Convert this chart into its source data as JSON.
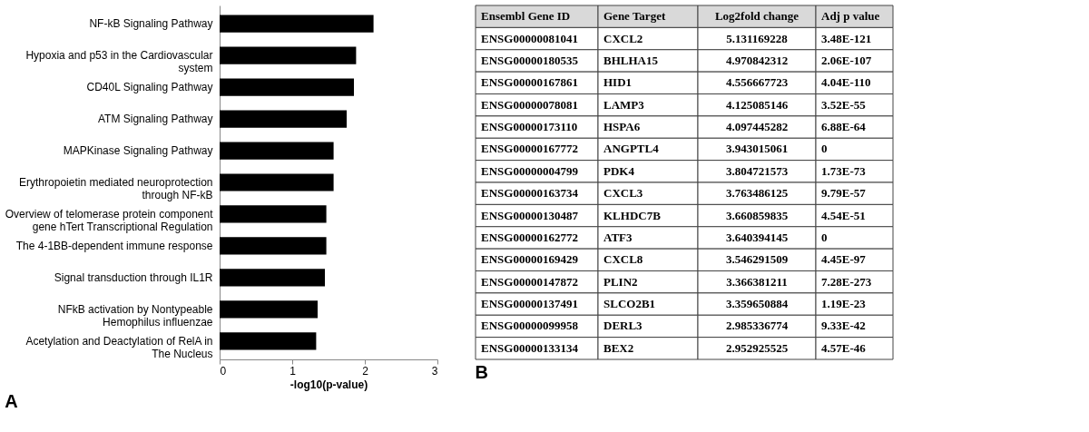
{
  "chart_data": [
    {
      "type": "bar",
      "orientation": "horizontal",
      "title": "A",
      "xlabel": "-log10(p-value)",
      "categories": [
        "NF-kB Signaling Pathway",
        "Hypoxia and p53 in the Cardiovascular system",
        "CD40L Signaling Pathway",
        "ATM Signaling Pathway",
        "MAPKinase Signaling Pathway",
        "Erythropoietin mediated neuroprotection through NF-kB",
        "Overview of telomerase protein component gene hTert Transcriptional Regulation",
        "The 4-1BB-dependent immune response",
        "Signal transduction through IL1R",
        "NFkB activation by Nontypeable Hemophilus influenzae",
        "Acetylation and Deactylation of RelA in The Nucleus"
      ],
      "values": [
        2.12,
        1.88,
        1.85,
        1.75,
        1.57,
        1.57,
        1.47,
        1.47,
        1.45,
        1.35,
        1.33
      ],
      "color": "#000000",
      "xlim": [
        0,
        3
      ],
      "xticks": [
        0,
        1,
        2,
        3
      ],
      "grid": false
    },
    {
      "type": "other",
      "title": "B",
      "annotations": [
        "Ensembl Gene ID",
        "Gene Target",
        "Log2fold change",
        "Adj p value",
        "ENSG00000081041",
        "CXCL2",
        "5.131169228",
        "3.48E-121",
        "ENSG00000180535",
        "BHLHA15",
        "4.970842312",
        "2.06E-107",
        "ENSG00000167861",
        "HID1",
        "4.556667723",
        "4.04E-110",
        "ENSG00000078081",
        "LAMP3",
        "4.125085146",
        "3.52E-55",
        "ENSG00000173110",
        "HSPA6",
        "4.097445282",
        "6.88E-64",
        "ENSG00000167772",
        "ANGPTL4",
        "3.943015061",
        "0",
        "ENSG00000004799",
        "PDK4",
        "3.804721573",
        "1.73E-73",
        "ENSG00000163734",
        "CXCL3",
        "3.763486125",
        "9.79E-57",
        "ENSG00000130487",
        "KLHDC7B",
        "3.660859835",
        "4.54E-51",
        "ENSG00000162772",
        "ATF3",
        "3.640394145",
        "0",
        "ENSG00000169429",
        "CXCL8",
        "3.546291509",
        "4.45E-97",
        "ENSG00000147872",
        "PLIN2",
        "3.366381211",
        "7.28E-273",
        "ENSG00000137491",
        "SLCO2B1",
        "3.359650884",
        "1.19E-23",
        "ENSG00000099958",
        "DERL3",
        "2.985336774",
        "9.33E-42",
        "ENSG00000133134",
        "BEX2",
        "2.952925525",
        "4.57E-46"
      ]
    }
  ]
}
